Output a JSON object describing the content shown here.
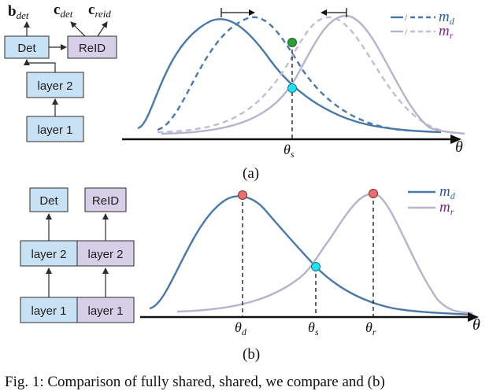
{
  "panel_a": {
    "blocks": {
      "layer1": "layer 1",
      "layer2": "layer 2",
      "det": "Det",
      "reid": "ReID"
    },
    "outputs": {
      "bdet": {
        "main": "b",
        "sub": "det"
      },
      "cdet": {
        "main": "c",
        "sub": "det"
      },
      "creid": {
        "main": "c",
        "sub": "reid"
      }
    },
    "legend": {
      "md": {
        "main": "m",
        "sub": "d"
      },
      "mr": {
        "main": "m",
        "sub": "r"
      },
      "separator": "/"
    },
    "axis": {
      "theta": "θ",
      "theta_s": {
        "main": "θ",
        "sub": "s"
      }
    },
    "caption": "(a)"
  },
  "panel_b": {
    "blocks": {
      "layer1_left": "layer 1",
      "layer1_right": "layer 1",
      "layer2_left": "layer 2",
      "layer2_right": "layer 2",
      "det": "Det",
      "reid": "ReID"
    },
    "legend": {
      "md": {
        "main": "m",
        "sub": "d"
      },
      "mr": {
        "main": "m",
        "sub": "r"
      }
    },
    "axis": {
      "theta": "θ",
      "theta_d": {
        "main": "θ",
        "sub": "d"
      },
      "theta_s": {
        "main": "θ",
        "sub": "s"
      },
      "theta_r": {
        "main": "θ",
        "sub": "r"
      }
    },
    "caption": "(b)"
  },
  "footer_text": "Fig. 1: Comparison of fully shared, shared, we compare and (b)",
  "colors": {
    "md": "#4a78a8",
    "mr": "#b8b2cd",
    "md_text": "#2f5d9a",
    "mr_text": "#7a2a8a",
    "box_blue": "#c9e1f5",
    "box_purple": "#d7cfe8",
    "dot_green": "#2e9e3a",
    "dot_cyan": "#22e0f0",
    "dot_red": "#e87070"
  },
  "icons": {
    "arrow_right": "arrow-right-icon",
    "arrow_left": "arrow-left-icon"
  }
}
